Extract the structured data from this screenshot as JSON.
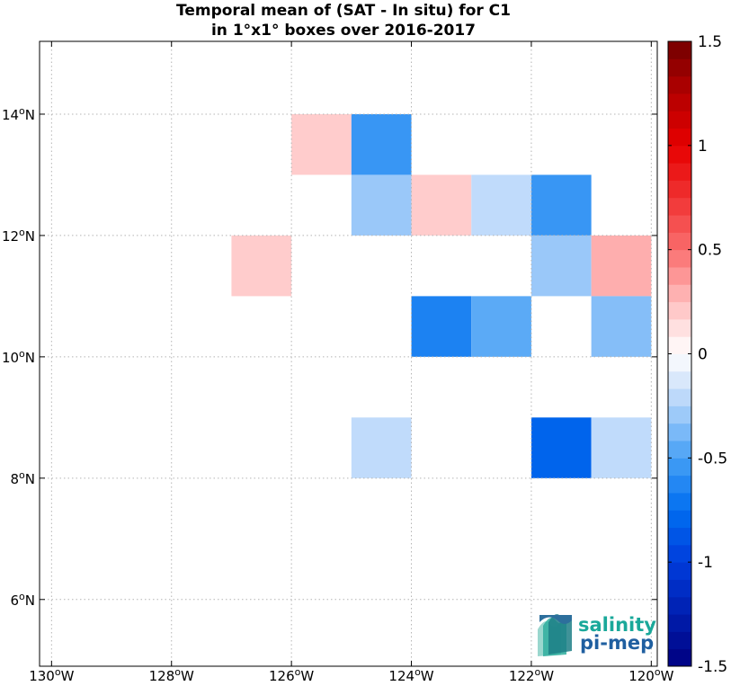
{
  "chart_data": {
    "type": "heatmap",
    "title": "Temporal mean of (SAT - In situ) for C1",
    "subtitle": "in 1°x1° boxes over 2016-2017",
    "xlim": [
      -130.2,
      -119.9
    ],
    "ylim": [
      4.9,
      15.2
    ],
    "xticks": [
      {
        "value": -130,
        "label": "130",
        "unit": "W"
      },
      {
        "value": -128,
        "label": "128",
        "unit": "W"
      },
      {
        "value": -126,
        "label": "126",
        "unit": "W"
      },
      {
        "value": -124,
        "label": "124",
        "unit": "W"
      },
      {
        "value": -122,
        "label": "122",
        "unit": "W"
      },
      {
        "value": -120,
        "label": "120",
        "unit": "W"
      }
    ],
    "yticks": [
      {
        "value": 6,
        "label": "6",
        "unit": "N"
      },
      {
        "value": 8,
        "label": "8",
        "unit": "N"
      },
      {
        "value": 10,
        "label": "10",
        "unit": "N"
      },
      {
        "value": 12,
        "label": "12",
        "unit": "N"
      },
      {
        "value": 14,
        "label": "14",
        "unit": "N"
      }
    ],
    "degree_symbol": "o",
    "grid": true,
    "colorbar": {
      "range": [
        -1.5,
        1.5
      ],
      "levels": 36,
      "ticks": [
        {
          "value": 1.5,
          "label": "1.5"
        },
        {
          "value": 1,
          "label": "1"
        },
        {
          "value": 0.5,
          "label": "0.5"
        },
        {
          "value": 0,
          "label": "0"
        },
        {
          "value": -0.5,
          "label": "-0.5"
        },
        {
          "value": -1,
          "label": "-1"
        },
        {
          "value": -1.5,
          "label": "-1.5"
        }
      ]
    },
    "cells": [
      {
        "lon": -125.5,
        "lat": 13.5,
        "value": 0.2
      },
      {
        "lon": -124.5,
        "lat": 13.5,
        "value": -0.55
      },
      {
        "lon": -124.5,
        "lat": 12.5,
        "value": -0.3
      },
      {
        "lon": -123.5,
        "lat": 12.5,
        "value": 0.2
      },
      {
        "lon": -122.5,
        "lat": 12.5,
        "value": -0.2
      },
      {
        "lon": -121.5,
        "lat": 12.5,
        "value": -0.55
      },
      {
        "lon": -126.5,
        "lat": 11.5,
        "value": 0.2
      },
      {
        "lon": -121.5,
        "lat": 11.5,
        "value": -0.3
      },
      {
        "lon": -120.5,
        "lat": 11.5,
        "value": 0.3
      },
      {
        "lon": -123.5,
        "lat": 10.5,
        "value": -0.65
      },
      {
        "lon": -122.5,
        "lat": 10.5,
        "value": -0.45
      },
      {
        "lon": -120.5,
        "lat": 10.5,
        "value": -0.35
      },
      {
        "lon": -124.5,
        "lat": 8.5,
        "value": -0.2
      },
      {
        "lon": -121.5,
        "lat": 8.5,
        "value": -0.8
      },
      {
        "lon": -120.5,
        "lat": 8.5,
        "value": -0.2
      }
    ]
  },
  "logo": {
    "line1": "salinity",
    "line2": "pi-mep",
    "color_line1": "#1aa89a",
    "color_line2": "#1f5fa0"
  }
}
